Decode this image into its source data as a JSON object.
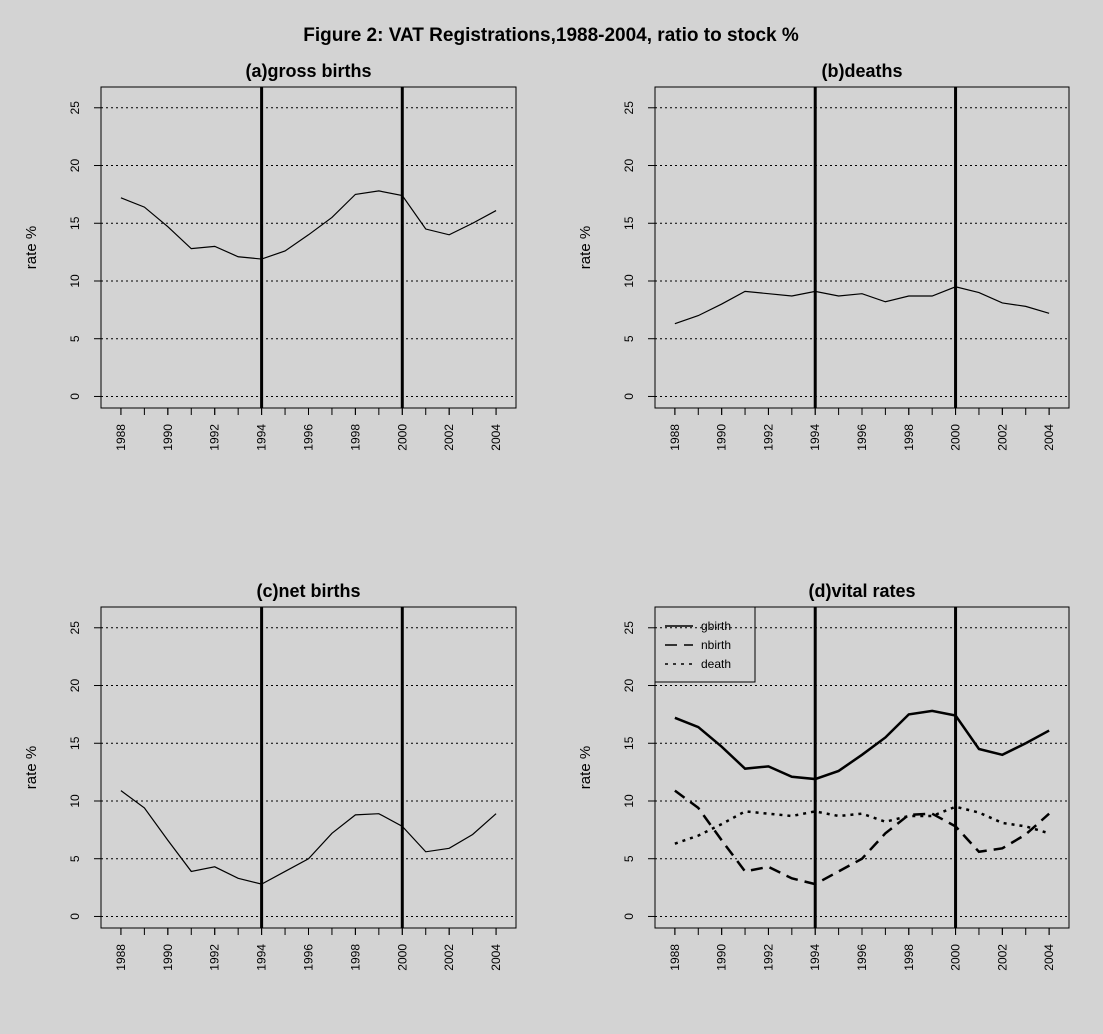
{
  "title": "Figure 2: VAT Registrations,1988-2004, ratio to stock %",
  "chart_data": [
    {
      "type": "line",
      "title": "(a)gross births",
      "ylabel": "rate %",
      "x": [
        1988,
        1989,
        1990,
        1991,
        1992,
        1993,
        1994,
        1995,
        1996,
        1997,
        1998,
        1999,
        2000,
        2001,
        2002,
        2003,
        2004
      ],
      "series": [
        {
          "color": "#000000",
          "line_style": "solid",
          "line_width": 1.2,
          "values": [
            17.2,
            16.4,
            14.7,
            12.8,
            13.0,
            12.1,
            11.9,
            12.6,
            14.0,
            15.5,
            17.5,
            17.8,
            17.4,
            14.5,
            14.0,
            15.0,
            16.1
          ]
        }
      ],
      "xlim": [
        1987.15,
        2004.85
      ],
      "xticks": [
        1988,
        1990,
        1992,
        1994,
        1996,
        1998,
        2000,
        2002,
        2004
      ],
      "ylim": [
        -1,
        26.8
      ],
      "yticks": [
        0,
        5,
        10,
        15,
        20,
        25
      ],
      "grid": true,
      "vlines": [
        1994,
        2000
      ]
    },
    {
      "type": "line",
      "title": "(b)deaths",
      "ylabel": "rate %",
      "x": [
        1988,
        1989,
        1990,
        1991,
        1992,
        1993,
        1994,
        1995,
        1996,
        1997,
        1998,
        1999,
        2000,
        2001,
        2002,
        2003,
        2004
      ],
      "series": [
        {
          "color": "#000000",
          "line_style": "solid",
          "line_width": 1.2,
          "values": [
            6.3,
            7.0,
            8.0,
            9.1,
            8.9,
            8.7,
            9.1,
            8.7,
            8.9,
            8.2,
            8.7,
            8.7,
            9.5,
            9.0,
            8.1,
            7.8,
            7.2
          ]
        }
      ],
      "xlim": [
        1987.15,
        2004.85
      ],
      "xticks": [
        1988,
        1990,
        1992,
        1994,
        1996,
        1998,
        2000,
        2002,
        2004
      ],
      "ylim": [
        -1,
        26.8
      ],
      "yticks": [
        0,
        5,
        10,
        15,
        20,
        25
      ],
      "grid": true,
      "vlines": [
        1994,
        2000
      ]
    },
    {
      "type": "line",
      "title": "(c)net births",
      "ylabel": "rate %",
      "x": [
        1988,
        1989,
        1990,
        1991,
        1992,
        1993,
        1994,
        1995,
        1996,
        1997,
        1998,
        1999,
        2000,
        2001,
        2002,
        2003,
        2004
      ],
      "series": [
        {
          "color": "#000000",
          "line_style": "solid",
          "line_width": 1.2,
          "values": [
            10.9,
            9.4,
            6.6,
            3.9,
            4.3,
            3.3,
            2.8,
            3.9,
            5.0,
            7.2,
            8.8,
            8.9,
            7.8,
            5.6,
            5.9,
            7.1,
            8.9
          ]
        }
      ],
      "xlim": [
        1987.15,
        2004.85
      ],
      "xticks": [
        1988,
        1990,
        1992,
        1994,
        1996,
        1998,
        2000,
        2002,
        2004
      ],
      "ylim": [
        -1,
        26.8
      ],
      "yticks": [
        0,
        5,
        10,
        15,
        20,
        25
      ],
      "grid": true,
      "vlines": [
        1994,
        2000
      ]
    },
    {
      "type": "line",
      "title": "(d)vital rates",
      "ylabel": "rate %",
      "legend": "top-left",
      "x": [
        1988,
        1989,
        1990,
        1991,
        1992,
        1993,
        1994,
        1995,
        1996,
        1997,
        1998,
        1999,
        2000,
        2001,
        2002,
        2003,
        2004
      ],
      "series": [
        {
          "name": "gbirth",
          "color": "#000000",
          "line_style": "solid",
          "line_width": 2.5,
          "values": [
            17.2,
            16.4,
            14.7,
            12.8,
            13.0,
            12.1,
            11.9,
            12.6,
            14.0,
            15.5,
            17.5,
            17.8,
            17.4,
            14.5,
            14.0,
            15.0,
            16.1
          ]
        },
        {
          "name": "nbirth",
          "color": "#000000",
          "line_style": "dashed",
          "line_width": 2.5,
          "values": [
            10.9,
            9.4,
            6.6,
            3.9,
            4.3,
            3.3,
            2.8,
            3.9,
            5.0,
            7.2,
            8.8,
            8.9,
            7.8,
            5.6,
            5.9,
            7.1,
            8.9
          ]
        },
        {
          "name": "death",
          "color": "#000000",
          "line_style": "dotted",
          "line_width": 2.5,
          "values": [
            6.3,
            7.0,
            8.0,
            9.1,
            8.9,
            8.7,
            9.1,
            8.7,
            8.9,
            8.2,
            8.7,
            8.7,
            9.5,
            9.0,
            8.1,
            7.8,
            7.2
          ]
        }
      ],
      "xlim": [
        1987.15,
        2004.85
      ],
      "xticks": [
        1988,
        1990,
        1992,
        1994,
        1996,
        1998,
        2000,
        2002,
        2004
      ],
      "ylim": [
        -1,
        26.8
      ],
      "yticks": [
        0,
        5,
        10,
        15,
        20,
        25
      ],
      "grid": true,
      "vlines": [
        1994,
        2000
      ]
    }
  ]
}
